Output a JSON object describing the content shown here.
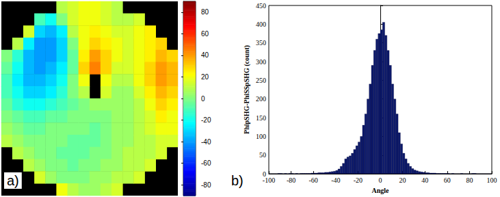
{
  "chart_data": [
    {
      "type": "heatmap",
      "annotation": "a)",
      "tick_labels": false,
      "cells": [
        [
          null,
          null,
          null,
          null,
          null,
          10,
          15,
          20,
          20,
          15,
          10,
          null,
          null,
          null,
          null,
          null
        ],
        [
          null,
          null,
          null,
          -10,
          -20,
          0,
          15,
          20,
          20,
          15,
          10,
          10,
          15,
          null,
          null,
          null
        ],
        [
          null,
          null,
          15,
          -30,
          -35,
          -25,
          10,
          20,
          25,
          20,
          15,
          15,
          20,
          25,
          null,
          null
        ],
        [
          null,
          10,
          -25,
          -40,
          -40,
          -30,
          0,
          20,
          30,
          25,
          20,
          15,
          20,
          25,
          30,
          null
        ],
        [
          0,
          -15,
          -35,
          -40,
          -40,
          -30,
          -5,
          25,
          40,
          30,
          20,
          15,
          20,
          25,
          35,
          30
        ],
        [
          -5,
          -20,
          -35,
          -40,
          -35,
          -25,
          -5,
          30,
          45,
          30,
          15,
          15,
          20,
          30,
          40,
          35
        ],
        [
          -10,
          -25,
          -35,
          -35,
          -30,
          -20,
          0,
          20,
          null,
          20,
          10,
          10,
          20,
          30,
          40,
          35
        ],
        [
          -10,
          -20,
          -30,
          -30,
          -25,
          -15,
          0,
          10,
          null,
          15,
          5,
          5,
          15,
          25,
          35,
          30
        ],
        [
          -5,
          -15,
          -20,
          -20,
          -15,
          -10,
          -5,
          0,
          5,
          5,
          5,
          5,
          10,
          20,
          30,
          25
        ],
        [
          0,
          -5,
          -10,
          -10,
          -5,
          -5,
          0,
          0,
          0,
          0,
          5,
          5,
          10,
          15,
          25,
          20
        ],
        [
          5,
          0,
          -5,
          -5,
          0,
          0,
          0,
          0,
          -5,
          0,
          5,
          5,
          10,
          15,
          20,
          20
        ],
        [
          10,
          5,
          0,
          0,
          0,
          0,
          -5,
          -5,
          -5,
          0,
          5,
          5,
          10,
          10,
          15,
          15
        ],
        [
          null,
          10,
          5,
          0,
          0,
          -5,
          -5,
          -5,
          0,
          0,
          5,
          10,
          10,
          10,
          15,
          null
        ],
        [
          null,
          null,
          10,
          5,
          0,
          0,
          -5,
          0,
          0,
          5,
          5,
          10,
          10,
          15,
          null,
          null
        ],
        [
          null,
          null,
          null,
          15,
          5,
          0,
          0,
          0,
          5,
          5,
          10,
          10,
          15,
          null,
          null,
          null
        ],
        [
          null,
          null,
          null,
          null,
          null,
          20,
          10,
          5,
          5,
          10,
          15,
          null,
          null,
          null,
          null,
          null
        ]
      ],
      "colorbar": {
        "range": [
          -90,
          90
        ],
        "ticks": [
          -80,
          -60,
          -40,
          -20,
          0,
          20,
          40,
          60,
          80
        ]
      }
    },
    {
      "type": "histogram",
      "annotation": "b)",
      "xlabel": "Angle",
      "ylabel": "PhipSHG-PhiSSpSHG (count)",
      "color": "#0d1a6b",
      "bins": [
        -100,
        -98,
        -96,
        -94,
        -92,
        -90,
        -88,
        -86,
        -84,
        -82,
        -80,
        -78,
        -76,
        -74,
        -72,
        -70,
        -68,
        -66,
        -64,
        -62,
        -60,
        -58,
        -56,
        -54,
        -52,
        -50,
        -48,
        -46,
        -44,
        -42,
        -40,
        -38,
        -36,
        -34,
        -32,
        -30,
        -28,
        -26,
        -24,
        -22,
        -20,
        -18,
        -16,
        -14,
        -12,
        -10,
        -8,
        -6,
        -4,
        -2,
        0,
        2,
        4,
        6,
        8,
        10,
        12,
        14,
        16,
        18,
        20,
        22,
        24,
        26,
        28,
        30,
        32,
        34,
        36,
        38,
        40,
        42,
        44,
        46,
        48,
        50,
        52,
        54,
        56,
        58,
        60,
        62,
        64,
        66,
        68,
        70,
        72,
        74,
        76,
        78,
        80,
        82,
        84,
        86,
        88,
        90,
        92,
        94,
        96,
        98,
        100
      ],
      "counts": [
        0,
        0,
        0,
        0,
        1,
        1,
        0,
        1,
        0,
        1,
        1,
        0,
        1,
        0,
        1,
        1,
        1,
        1,
        1,
        2,
        2,
        2,
        3,
        3,
        3,
        4,
        4,
        5,
        6,
        7,
        9,
        13,
        20,
        28,
        40,
        45,
        48,
        55,
        65,
        75,
        85,
        100,
        130,
        160,
        200,
        240,
        290,
        330,
        360,
        375,
        385,
        405,
        370,
        330,
        290,
        240,
        200,
        160,
        110,
        80,
        55,
        40,
        28,
        20,
        14,
        10,
        8,
        6,
        5,
        4,
        3,
        3,
        2,
        2,
        2,
        1,
        1,
        1,
        1,
        1,
        1,
        0,
        1,
        0,
        0,
        0,
        1,
        0,
        0,
        0,
        0,
        1,
        1,
        0,
        0,
        0,
        0,
        0,
        0,
        0
      ],
      "xlim": [
        -100,
        100
      ],
      "xticks": [
        -100,
        -80,
        -60,
        -40,
        -20,
        0,
        20,
        40,
        60,
        80,
        100
      ],
      "ylim": [
        0,
        450
      ],
      "yticks": [
        0,
        50,
        100,
        150,
        200,
        250,
        300,
        350,
        400,
        450
      ]
    }
  ]
}
